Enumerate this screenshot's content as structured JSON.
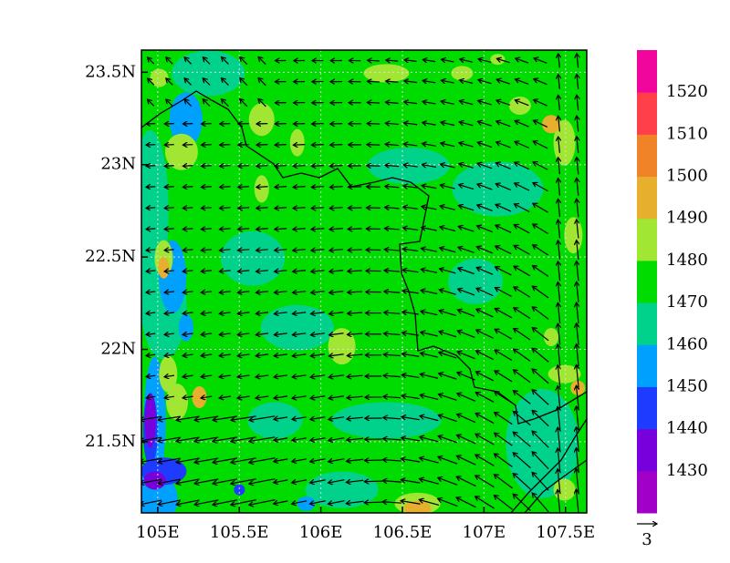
{
  "chart_data": {
    "type": "contour-map",
    "xlim": [
      104.9,
      107.63
    ],
    "ylim": [
      21.115,
      23.62
    ],
    "xticks": [
      {
        "value": 105,
        "label": "105E"
      },
      {
        "value": 105.5,
        "label": "105.5E"
      },
      {
        "value": 106,
        "label": "106E"
      },
      {
        "value": 106.5,
        "label": "106.5E"
      },
      {
        "value": 107,
        "label": "107E"
      },
      {
        "value": 107.5,
        "label": "107.5E"
      }
    ],
    "yticks": [
      {
        "value": 21.5,
        "label": "21.5N"
      },
      {
        "value": 22,
        "label": "22N"
      },
      {
        "value": 22.5,
        "label": "22.5N"
      },
      {
        "value": 23,
        "label": "23N"
      },
      {
        "value": 23.5,
        "label": "23.5N"
      }
    ],
    "grid": true,
    "colorbar": {
      "levels": [
        1430,
        1440,
        1450,
        1460,
        1470,
        1480,
        1490,
        1500,
        1510,
        1520
      ],
      "colors": [
        "#a000c8",
        "#7800dc",
        "#1e3cff",
        "#00a0ff",
        "#00d28c",
        "#00dc00",
        "#a0e632",
        "#e6af2d",
        "#f08228",
        "#ff3f4a",
        "#f0069c"
      ]
    },
    "reference_vector": 3
  }
}
